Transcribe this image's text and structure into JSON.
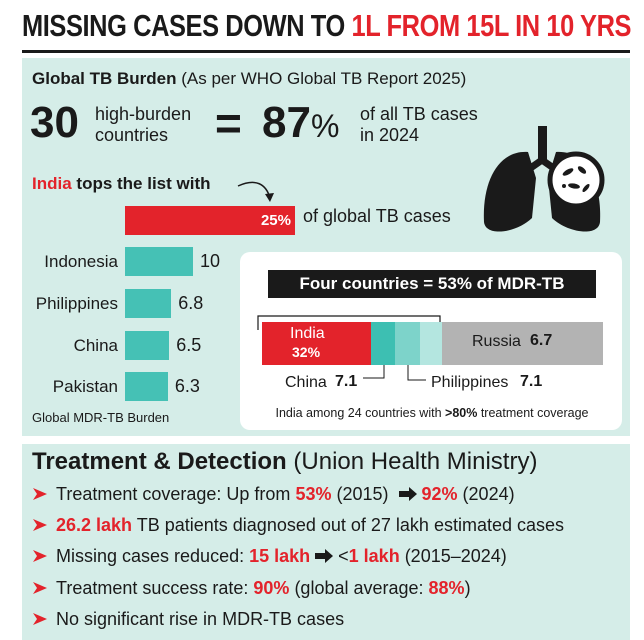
{
  "header": {
    "title": "MISSING CASES DOWN TO",
    "highlight": "1L FROM 15L IN 10 YRS"
  },
  "burden": {
    "heading": "Global TB Burden",
    "source": "(As per WHO Global TB Report 2025)",
    "count": 30,
    "count_text": "high-burden countries",
    "equals": "=",
    "share": 87,
    "share_unit": "%",
    "share_text": "of all TB cases in 2024"
  },
  "chart_data": [
    {
      "type": "bar",
      "orientation": "horizontal",
      "intro": "tops the list with",
      "annotation": "of global TB cases",
      "caption": "Global MDR-TB Burden",
      "categories": [
        "India",
        "Indonesia",
        "Philippines",
        "China",
        "Pakistan"
      ],
      "values": [
        25,
        10,
        6.8,
        6.5,
        6.3
      ],
      "value_labels": [
        "25%",
        "10",
        "6.8",
        "6.5",
        "6.3"
      ],
      "colors": [
        "#e3232b",
        "#45c1b5",
        "#45c1b5",
        "#45c1b5",
        "#45c1b5"
      ],
      "xlim": [
        0,
        25
      ]
    },
    {
      "type": "stacked_bar",
      "title": "Four countries = 53% of MDR-TB",
      "categories": [
        "India",
        "China",
        "Philippines",
        "Russia"
      ],
      "values": [
        32,
        7.1,
        7.1,
        6.7
      ],
      "value_labels": [
        "32%",
        "7.1",
        "7.1",
        "6.7"
      ],
      "colors": [
        "#e3232b",
        "#3dbfb2",
        "#7dd3ca",
        "#b4e6e0"
      ],
      "xlim": [
        0,
        100
      ],
      "note": [
        "India among 24 countries with ",
        ">80%",
        " treatment coverage"
      ]
    }
  ],
  "treatment": {
    "heading": "Treatment & Detection",
    "source": "(Union Health Ministry)",
    "items": [
      [
        "Treatment coverage: Up from ",
        "53%",
        " (2015) ",
        "92%",
        " (2024)"
      ],
      [
        "26.2 lakh",
        " TB patients diagnosed out of 27 lakh estimated cases"
      ],
      [
        "Missing cases reduced: ",
        "15 lakh",
        "<",
        "1 lakh",
        " (2015–2024)"
      ],
      [
        "Treatment success rate: ",
        "90%",
        " (global average: ",
        "88%",
        ")"
      ],
      [
        "No significant rise in MDR-TB cases"
      ]
    ]
  }
}
